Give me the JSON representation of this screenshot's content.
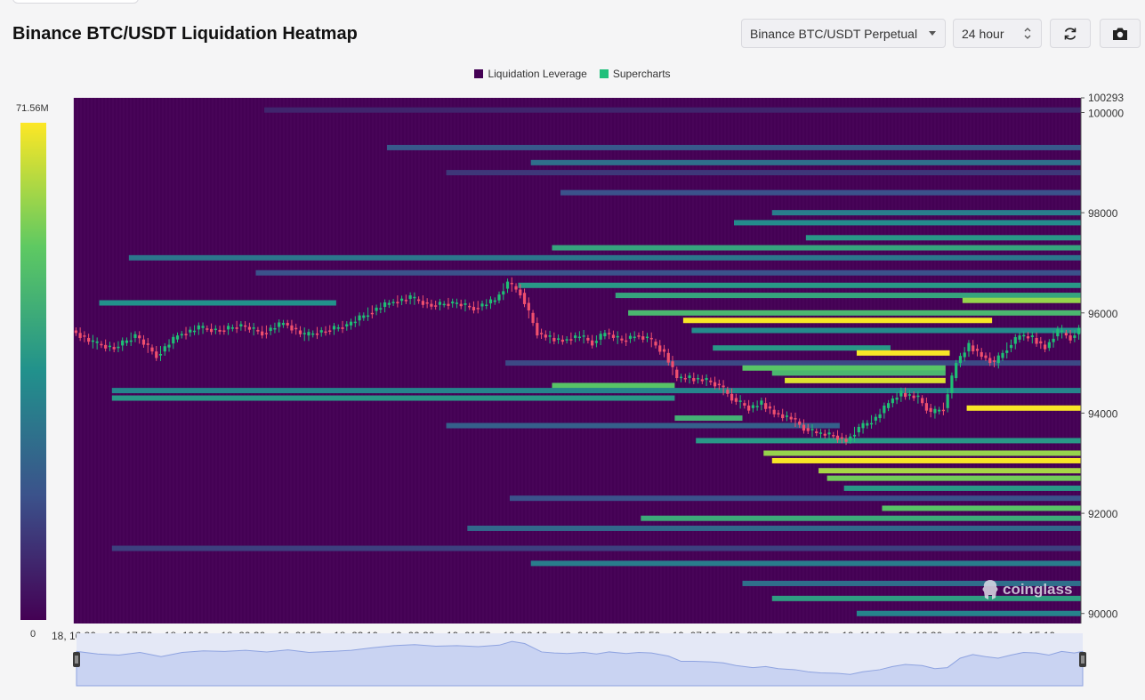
{
  "header": {
    "title": "Binance BTC/USDT Liquidation Heatmap",
    "symbol_select": "Binance BTC/USDT Perpetual",
    "range_select": "24 hour",
    "refresh_icon": "refresh-icon",
    "camera_icon": "camera-icon"
  },
  "legend": {
    "items": [
      {
        "label": "Liquidation Leverage",
        "color": "#440154"
      },
      {
        "label": "Supercharts",
        "color": "#21c07b"
      }
    ]
  },
  "colorbar": {
    "max_label": "71.56M",
    "min_label": "0"
  },
  "watermark": "coinglass",
  "chart_data": {
    "type": "heatmap",
    "title": "Binance BTC/USDT Liquidation Heatmap",
    "xlabel": "",
    "ylabel": "",
    "x_ticks": [
      "18, 16:30",
      "18, 17:50",
      "18, 19:10",
      "18, 20:30",
      "18, 21:50",
      "18, 23:10",
      "19, 00:30",
      "19, 01:50",
      "19, 03:10",
      "19, 04:30",
      "19, 05:50",
      "19, 07:10",
      "19, 08:30",
      "19, 09:50",
      "19, 11:10",
      "19, 12:30",
      "19, 13:50",
      "19, 15:10"
    ],
    "y_tick_labels": [
      "100293",
      "100000",
      "98000",
      "96000",
      "94000",
      "92000",
      "90000"
    ],
    "y_ticks": [
      100293,
      100000,
      98000,
      96000,
      94000,
      92000,
      90000
    ],
    "ylim": [
      89800,
      100293
    ],
    "xlim_hours": [
      0,
      23.8
    ],
    "colorbar_range": [
      0,
      71.56
    ],
    "colorbar_unit": "M",
    "price_series": [
      [
        0.0,
        95650
      ],
      [
        0.5,
        95400
      ],
      [
        1.0,
        95300
      ],
      [
        1.5,
        95550
      ],
      [
        2.0,
        95150
      ],
      [
        2.5,
        95550
      ],
      [
        3.0,
        95700
      ],
      [
        3.5,
        95650
      ],
      [
        4.0,
        95750
      ],
      [
        4.5,
        95600
      ],
      [
        5.0,
        95800
      ],
      [
        5.5,
        95550
      ],
      [
        6.0,
        95650
      ],
      [
        6.5,
        95750
      ],
      [
        7.0,
        96000
      ],
      [
        7.5,
        96200
      ],
      [
        8.0,
        96300
      ],
      [
        8.5,
        96150
      ],
      [
        9.0,
        96200
      ],
      [
        9.5,
        96100
      ],
      [
        10.0,
        96250
      ],
      [
        10.3,
        96600
      ],
      [
        10.6,
        96400
      ],
      [
        11.0,
        95600
      ],
      [
        11.3,
        95500
      ],
      [
        11.6,
        95450
      ],
      [
        12.0,
        95550
      ],
      [
        12.3,
        95400
      ],
      [
        12.6,
        95600
      ],
      [
        13.0,
        95450
      ],
      [
        13.3,
        95550
      ],
      [
        13.6,
        95500
      ],
      [
        14.0,
        95200
      ],
      [
        14.3,
        94700
      ],
      [
        14.6,
        94700
      ],
      [
        15.0,
        94650
      ],
      [
        15.3,
        94550
      ],
      [
        15.6,
        94300
      ],
      [
        16.0,
        94100
      ],
      [
        16.3,
        94200
      ],
      [
        16.6,
        94000
      ],
      [
        17.0,
        93900
      ],
      [
        17.3,
        93700
      ],
      [
        17.6,
        93600
      ],
      [
        18.0,
        93550
      ],
      [
        18.3,
        93450
      ],
      [
        18.6,
        93700
      ],
      [
        19.0,
        93900
      ],
      [
        19.3,
        94200
      ],
      [
        19.6,
        94400
      ],
      [
        20.0,
        94300
      ],
      [
        20.3,
        94000
      ],
      [
        20.6,
        94100
      ],
      [
        20.9,
        95000
      ],
      [
        21.2,
        95350
      ],
      [
        21.5,
        95150
      ],
      [
        21.8,
        95000
      ],
      [
        22.1,
        95300
      ],
      [
        22.4,
        95550
      ],
      [
        22.7,
        95500
      ],
      [
        23.0,
        95300
      ],
      [
        23.3,
        95650
      ],
      [
        23.6,
        95500
      ],
      [
        23.8,
        95650
      ]
    ],
    "liquidation_bands": [
      {
        "price": 100050,
        "start": 4.5,
        "end": 23.8,
        "value": 8
      },
      {
        "price": 99300,
        "start": 7.4,
        "end": 23.8,
        "value": 20
      },
      {
        "price": 99000,
        "start": 10.8,
        "end": 23.8,
        "value": 26
      },
      {
        "price": 98800,
        "start": 8.8,
        "end": 23.8,
        "value": 12
      },
      {
        "price": 98400,
        "start": 11.5,
        "end": 23.8,
        "value": 18
      },
      {
        "price": 98000,
        "start": 16.5,
        "end": 23.8,
        "value": 30
      },
      {
        "price": 97800,
        "start": 15.6,
        "end": 23.8,
        "value": 34
      },
      {
        "price": 97500,
        "start": 17.3,
        "end": 23.8,
        "value": 38
      },
      {
        "price": 97300,
        "start": 11.3,
        "end": 23.8,
        "value": 42
      },
      {
        "price": 97100,
        "start": 1.3,
        "end": 23.8,
        "value": 28
      },
      {
        "price": 96800,
        "start": 4.3,
        "end": 23.8,
        "value": 18
      },
      {
        "price": 96550,
        "start": 10.5,
        "end": 23.8,
        "value": 38
      },
      {
        "price": 96350,
        "start": 12.8,
        "end": 23.8,
        "value": 42
      },
      {
        "price": 96250,
        "start": 21.0,
        "end": 23.8,
        "value": 60
      },
      {
        "price": 96200,
        "start": 0.6,
        "end": 6.2,
        "value": 36
      },
      {
        "price": 96000,
        "start": 13.1,
        "end": 23.8,
        "value": 48
      },
      {
        "price": 95850,
        "start": 14.4,
        "end": 21.7,
        "value": 71
      },
      {
        "price": 95650,
        "start": 14.6,
        "end": 23.8,
        "value": 34
      },
      {
        "price": 95300,
        "start": 15.1,
        "end": 19.3,
        "value": 38
      },
      {
        "price": 95200,
        "start": 18.5,
        "end": 20.7,
        "value": 71
      },
      {
        "price": 95000,
        "start": 10.2,
        "end": 23.8,
        "value": 16
      },
      {
        "price": 94900,
        "start": 15.8,
        "end": 20.6,
        "value": 52
      },
      {
        "price": 94800,
        "start": 16.5,
        "end": 20.6,
        "value": 48
      },
      {
        "price": 94650,
        "start": 16.8,
        "end": 20.6,
        "value": 68
      },
      {
        "price": 94550,
        "start": 11.3,
        "end": 14.2,
        "value": 52
      },
      {
        "price": 94450,
        "start": 0.9,
        "end": 23.8,
        "value": 32
      },
      {
        "price": 94300,
        "start": 0.9,
        "end": 14.2,
        "value": 38
      },
      {
        "price": 94100,
        "start": 21.1,
        "end": 23.8,
        "value": 71
      },
      {
        "price": 93900,
        "start": 14.2,
        "end": 15.8,
        "value": 46
      },
      {
        "price": 93750,
        "start": 8.8,
        "end": 18.1,
        "value": 22
      },
      {
        "price": 93450,
        "start": 14.7,
        "end": 23.8,
        "value": 38
      },
      {
        "price": 93200,
        "start": 16.3,
        "end": 23.8,
        "value": 60
      },
      {
        "price": 93050,
        "start": 16.5,
        "end": 23.8,
        "value": 71
      },
      {
        "price": 92850,
        "start": 17.6,
        "end": 23.8,
        "value": 62
      },
      {
        "price": 92700,
        "start": 17.8,
        "end": 23.8,
        "value": 56
      },
      {
        "price": 92500,
        "start": 18.2,
        "end": 23.8,
        "value": 38
      },
      {
        "price": 92300,
        "start": 10.3,
        "end": 23.8,
        "value": 18
      },
      {
        "price": 92100,
        "start": 19.1,
        "end": 23.8,
        "value": 52
      },
      {
        "price": 91900,
        "start": 13.4,
        "end": 23.8,
        "value": 44
      },
      {
        "price": 91700,
        "start": 9.3,
        "end": 23.8,
        "value": 24
      },
      {
        "price": 91300,
        "start": 0.9,
        "end": 23.8,
        "value": 14
      },
      {
        "price": 91000,
        "start": 10.8,
        "end": 23.8,
        "value": 30
      },
      {
        "price": 90600,
        "start": 15.8,
        "end": 23.8,
        "value": 26
      },
      {
        "price": 90300,
        "start": 16.5,
        "end": 23.8,
        "value": 40
      },
      {
        "price": 90000,
        "start": 18.5,
        "end": 23.8,
        "value": 32
      }
    ]
  }
}
